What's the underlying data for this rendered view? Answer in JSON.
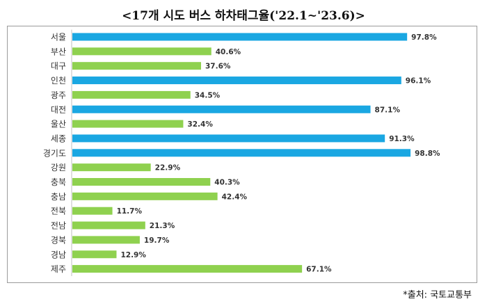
{
  "chart_data": {
    "type": "bar",
    "orientation": "horizontal",
    "title": "<17개 시도 버스 하차태그율('22.1~'23.6)>",
    "categories": [
      "서울",
      "부산",
      "대구",
      "인천",
      "광주",
      "대전",
      "울산",
      "세종",
      "경기도",
      "강원",
      "충북",
      "충남",
      "전북",
      "전남",
      "경북",
      "경남",
      "제주"
    ],
    "values": [
      97.8,
      40.6,
      37.6,
      96.1,
      34.5,
      87.1,
      32.4,
      91.3,
      98.8,
      22.9,
      40.3,
      42.4,
      11.7,
      21.3,
      19.7,
      12.9,
      67.1
    ],
    "value_labels": [
      "97.8%",
      "40.6%",
      "37.6%",
      "96.1%",
      "34.5%",
      "87.1%",
      "32.4%",
      "91.3%",
      "98.8%",
      "22.9%",
      "40.3%",
      "42.4%",
      "11.7%",
      "21.3%",
      "19.7%",
      "12.9%",
      "67.1%"
    ],
    "highlight": [
      true,
      false,
      false,
      true,
      false,
      true,
      false,
      true,
      true,
      false,
      false,
      false,
      false,
      false,
      false,
      false,
      false
    ],
    "colors": {
      "highlight": "#1aa7e2",
      "normal": "#8fd14f"
    },
    "xlim": [
      0,
      100
    ],
    "grid": false,
    "source": "*출처: 국토교통부"
  }
}
